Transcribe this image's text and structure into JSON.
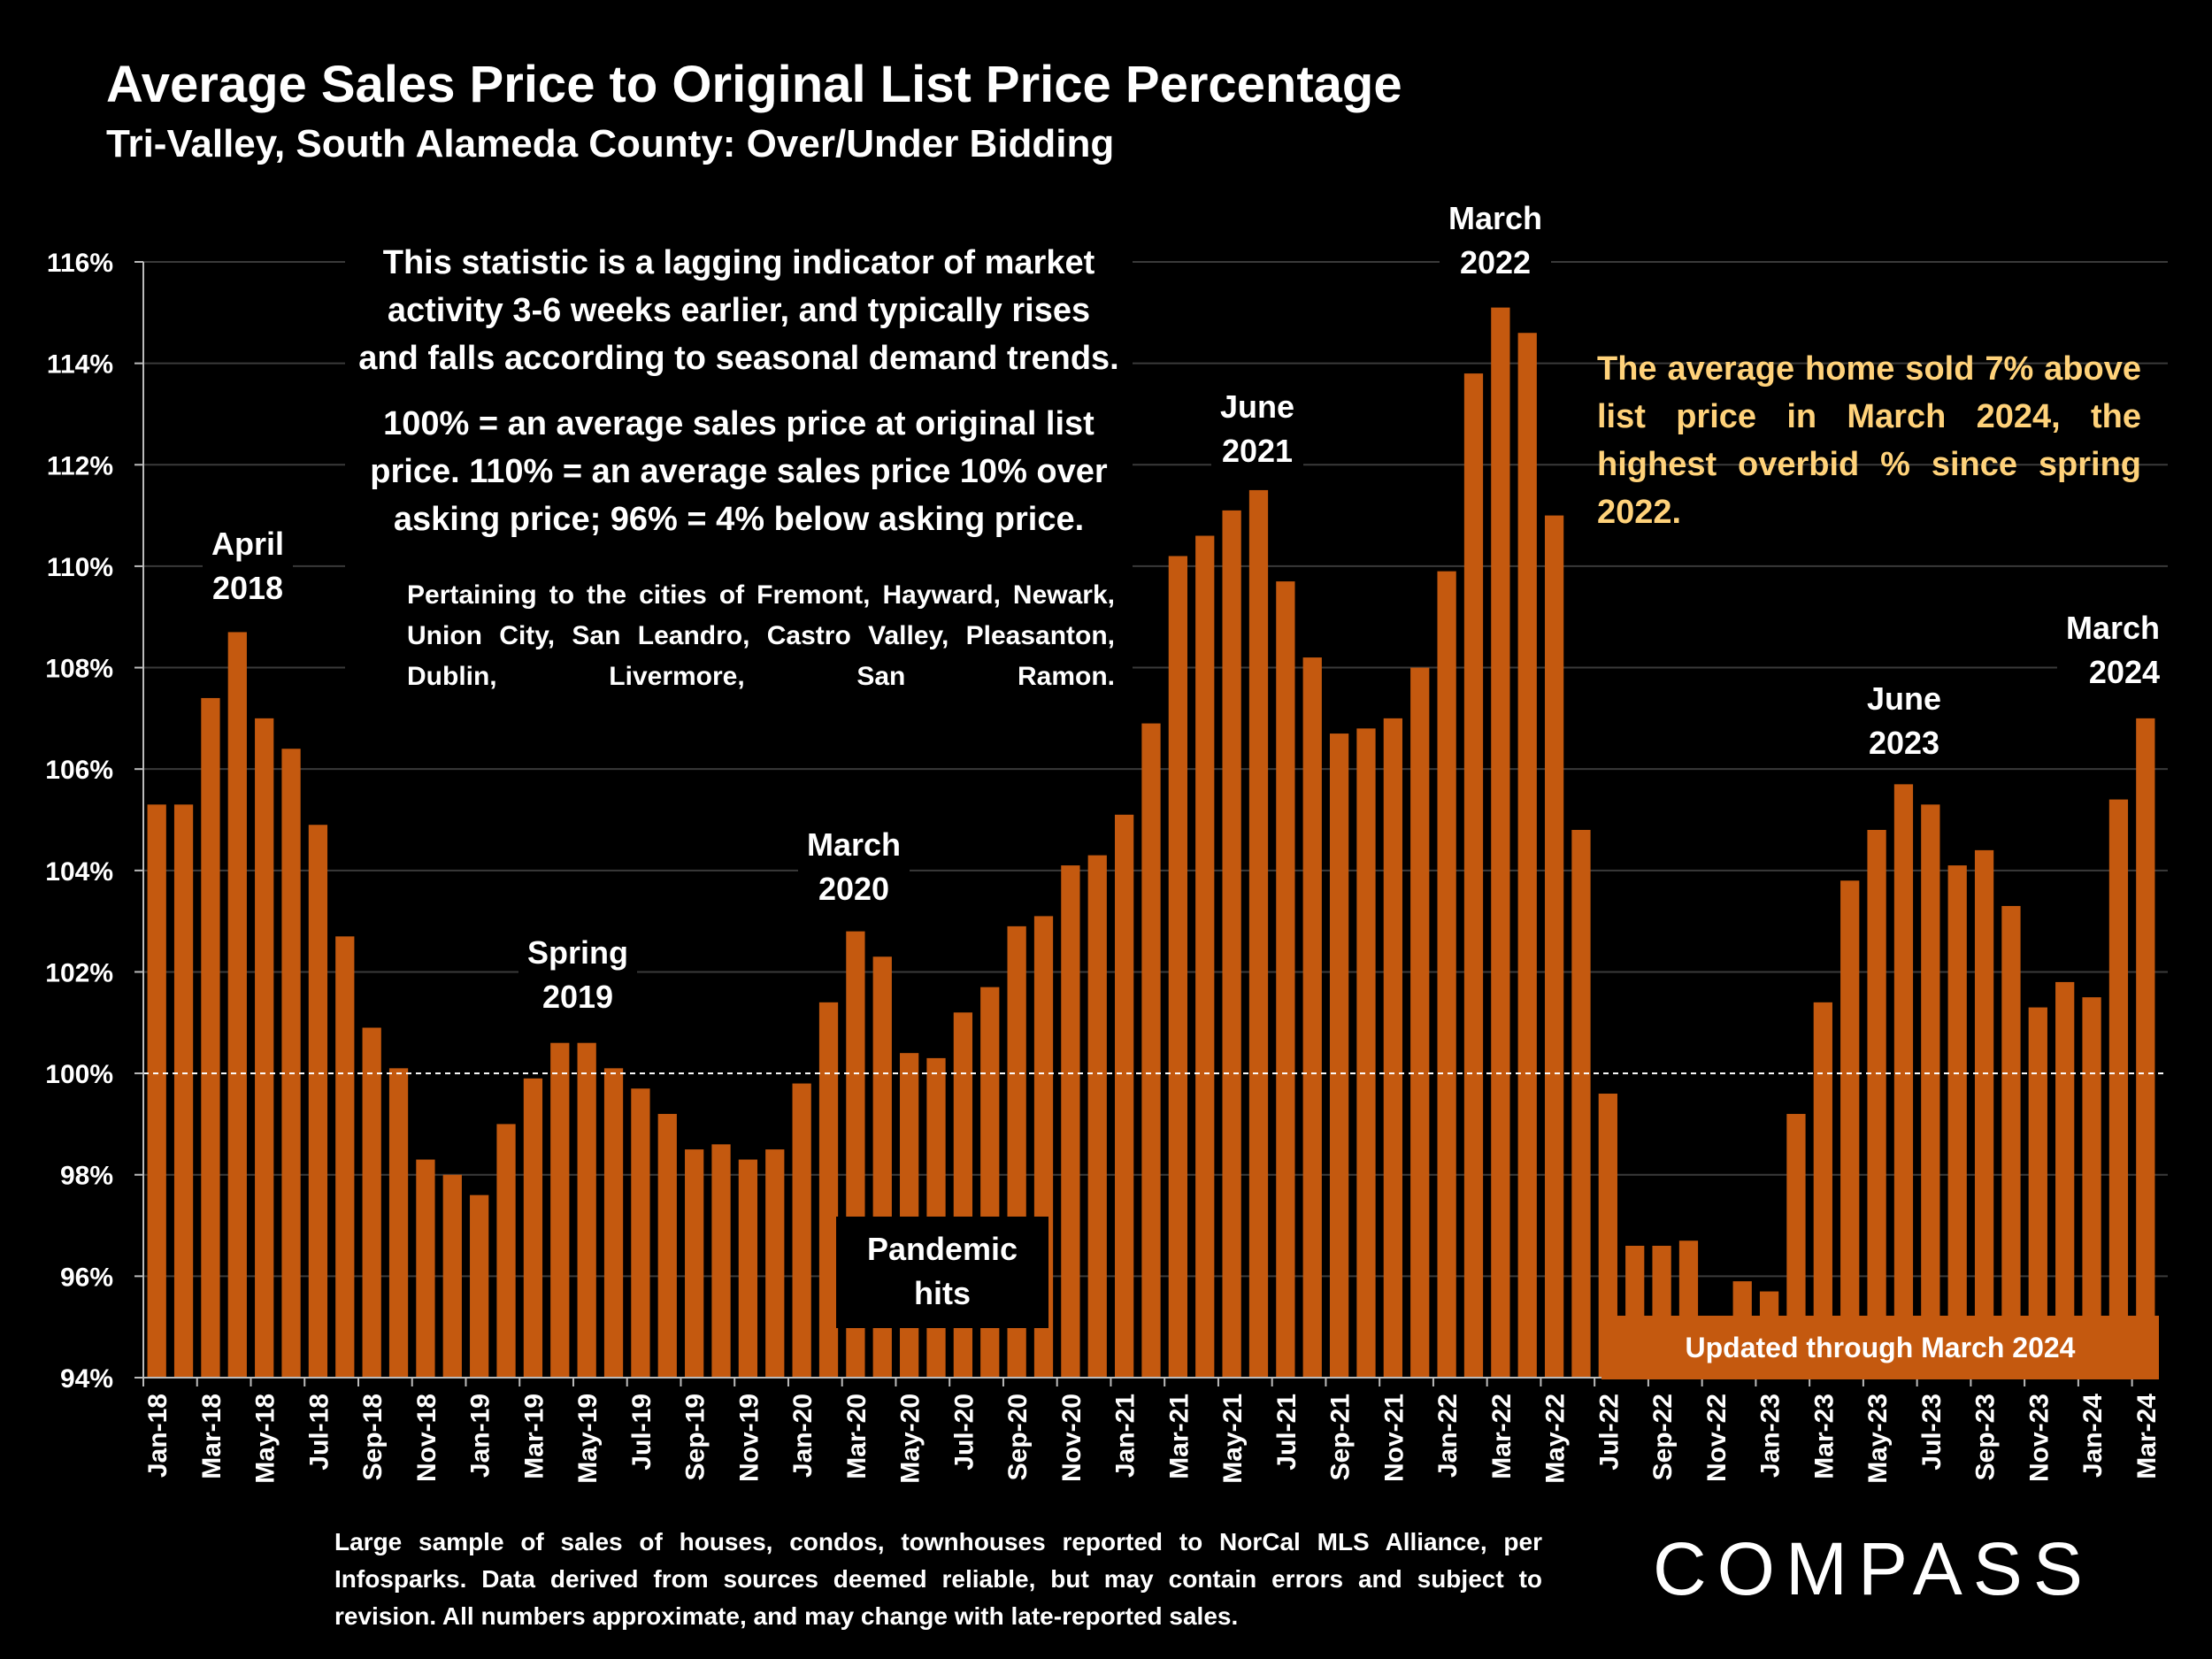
{
  "header": {
    "title": "Average Sales Price to Original List Price Percentage",
    "subtitle": "Tri-Valley, South Alameda County:  Over/Under Bidding"
  },
  "notes": {
    "lines1": [
      "This statistic is a lagging indicator of market",
      "activity 3-6 weeks earlier, and typically rises",
      "and falls according to seasonal demand trends."
    ],
    "lines2": [
      "100% = an average sales price at original list",
      "price. 110% = an average sales price 10% over",
      "asking price; 96% = 4% below asking price."
    ],
    "cities": "Pertaining to the cities of Fremont, Hayward, Newark, Union City, San Leandro, Castro Valley, Pleasanton, Dublin, Livermore, San Ramon."
  },
  "callout": "The average home sold 7% above list price in March 2024, the highest overbid % since spring 2022.",
  "annotations": {
    "april_2018": [
      "April",
      "2018"
    ],
    "spring_2019": [
      "Spring",
      "2019"
    ],
    "march_2020": [
      "March",
      "2020"
    ],
    "june_2021": [
      "June",
      "2021"
    ],
    "march_2022": [
      "March",
      "2022"
    ],
    "june_2023": [
      "June",
      "2023"
    ],
    "march_2024": [
      "March",
      "2024"
    ],
    "pandemic": [
      "Pandemic",
      "hits"
    ]
  },
  "updated_label": "Updated through March 2024",
  "footnote": "Large sample of sales of houses, condos, townhouses reported to NorCal MLS Alliance, per Infosparks. Data derived from sources deemed reliable, but may contain errors and subject to revision. All numbers approximate, and may change with late-reported sales.",
  "brand": "COMPASS",
  "colors": {
    "bar": "#c4590f",
    "callout_text": "#ffd27a",
    "background": "#000000"
  },
  "chart_data": {
    "type": "bar",
    "ylim": [
      94,
      116
    ],
    "y_ticks": [
      "94%",
      "96%",
      "98%",
      "100%",
      "102%",
      "104%",
      "106%",
      "108%",
      "110%",
      "112%",
      "114%",
      "116%"
    ],
    "reference_line": 100,
    "grid": true,
    "categories": [
      "Jan-18",
      "Feb-18",
      "Mar-18",
      "Apr-18",
      "May-18",
      "Jun-18",
      "Jul-18",
      "Aug-18",
      "Sep-18",
      "Oct-18",
      "Nov-18",
      "Dec-18",
      "Jan-19",
      "Feb-19",
      "Mar-19",
      "Apr-19",
      "May-19",
      "Jun-19",
      "Jul-19",
      "Aug-19",
      "Sep-19",
      "Oct-19",
      "Nov-19",
      "Dec-19",
      "Jan-20",
      "Feb-20",
      "Mar-20",
      "Apr-20",
      "May-20",
      "Jun-20",
      "Jul-20",
      "Aug-20",
      "Sep-20",
      "Oct-20",
      "Nov-20",
      "Dec-20",
      "Jan-21",
      "Feb-21",
      "Mar-21",
      "Apr-21",
      "May-21",
      "Jun-21",
      "Jul-21",
      "Aug-21",
      "Sep-21",
      "Oct-21",
      "Nov-21",
      "Dec-21",
      "Jan-22",
      "Feb-22",
      "Mar-22",
      "Apr-22",
      "May-22",
      "Jun-22",
      "Jul-22",
      "Aug-22",
      "Sep-22",
      "Oct-22",
      "Nov-22",
      "Dec-22",
      "Jan-23",
      "Feb-23",
      "Mar-23",
      "Apr-23",
      "May-23",
      "Jun-23",
      "Jul-23",
      "Aug-23",
      "Sep-23",
      "Oct-23",
      "Nov-23",
      "Dec-23",
      "Jan-24",
      "Feb-24",
      "Mar-24"
    ],
    "x_tick_labels": [
      "Jan-18",
      "Mar-18",
      "May-18",
      "Jul-18",
      "Sep-18",
      "Nov-18",
      "Jan-19",
      "Mar-19",
      "May-19",
      "Jul-19",
      "Sep-19",
      "Nov-19",
      "Jan-20",
      "Mar-20",
      "May-20",
      "Jul-20",
      "Sep-20",
      "Nov-20",
      "Jan-21",
      "Mar-21",
      "May-21",
      "Jul-21",
      "Sep-21",
      "Nov-21",
      "Jan-22",
      "Mar-22",
      "May-22",
      "Jul-22",
      "Sep-22",
      "Nov-22",
      "Jan-23",
      "Mar-23",
      "May-23",
      "Jul-23",
      "Sep-23",
      "Nov-23",
      "Jan-24",
      "Mar-24"
    ],
    "values": [
      105.3,
      105.3,
      107.4,
      108.7,
      107.0,
      106.4,
      104.9,
      102.7,
      100.9,
      100.1,
      98.3,
      98.0,
      97.6,
      99.0,
      99.9,
      100.6,
      100.6,
      100.1,
      99.7,
      99.2,
      98.5,
      98.6,
      98.3,
      98.5,
      99.8,
      101.4,
      102.8,
      102.3,
      100.4,
      100.3,
      101.2,
      101.7,
      102.9,
      103.1,
      104.1,
      104.3,
      105.1,
      106.9,
      110.2,
      110.6,
      111.1,
      111.5,
      109.7,
      108.2,
      106.7,
      106.8,
      107.0,
      108.0,
      109.9,
      113.8,
      115.1,
      114.6,
      111.0,
      104.8,
      99.6,
      96.6,
      96.6,
      96.7,
      95.2,
      95.9,
      95.7,
      99.2,
      101.4,
      103.8,
      104.8,
      105.7,
      105.3,
      104.1,
      104.4,
      103.3,
      101.3,
      101.8,
      101.5,
      105.4,
      107.0
    ]
  }
}
